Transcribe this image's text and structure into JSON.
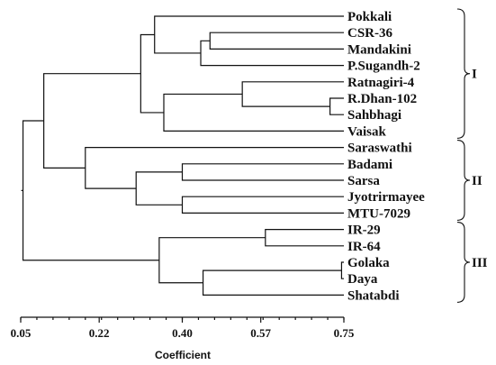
{
  "chart_data": {
    "type": "dendrogram",
    "xlabel": "Coefficient",
    "x_ticks": [
      0.05,
      0.22,
      0.4,
      0.57,
      0.75
    ],
    "x_tick_labels": [
      "0.05",
      "0.22",
      "0.40",
      "0.57",
      "0.75"
    ],
    "xlim": [
      0.05,
      0.75
    ],
    "leaves": [
      "Pokkali",
      "CSR-36",
      "Mandakini",
      "P.Sugandh-2",
      "Ratnagiri-4",
      "R.Dhan-102",
      "Sahbhagi",
      "Vaisak",
      "Saraswathi",
      "Badami",
      "Sarsa",
      "Jyotrirmayee",
      "MTU-7029",
      "IR-29",
      "IR-64",
      "Golaka",
      "Daya",
      "Shatabdi"
    ],
    "merges": [
      {
        "id": "m1",
        "left": "Golaka",
        "right": "Daya",
        "height": 0.745
      },
      {
        "id": "m2",
        "left": "R.Dhan-102",
        "right": "Sahbhagi",
        "height": 0.72
      },
      {
        "id": "m3",
        "left": "CSR-36",
        "right": "Mandakini",
        "height": 0.46
      },
      {
        "id": "m4",
        "left": "IR-29",
        "right": "IR-64",
        "height": 0.58
      },
      {
        "id": "m5",
        "left": "Ratnagiri-4",
        "right": "m2",
        "height": 0.53
      },
      {
        "id": "m6",
        "left": "m3",
        "right": "P.Sugandh-2",
        "height": 0.44
      },
      {
        "id": "m7",
        "left": "Badami",
        "right": "Sarsa",
        "height": 0.4
      },
      {
        "id": "m8",
        "left": "Jyotrirmayee",
        "right": "MTU-7029",
        "height": 0.4
      },
      {
        "id": "m9",
        "left": "m1",
        "right": "Shatabdi",
        "height": 0.445
      },
      {
        "id": "m10",
        "left": "m5",
        "right": "Vaisak",
        "height": 0.36
      },
      {
        "id": "m11",
        "left": "Pokkali",
        "right": "m6",
        "height": 0.34
      },
      {
        "id": "m12",
        "left": "m11",
        "right": "m10",
        "height": 0.31
      },
      {
        "id": "m13",
        "left": "m4",
        "right": "m9",
        "height": 0.35
      },
      {
        "id": "m14",
        "left": "m7",
        "right": "m8",
        "height": 0.3
      },
      {
        "id": "m15",
        "left": "Saraswathi",
        "right": "m14",
        "height": 0.19
      },
      {
        "id": "m16",
        "left": "m12",
        "right": "m15",
        "height": 0.1
      },
      {
        "id": "m17",
        "left": "m16",
        "right": "m13",
        "height": 0.055
      }
    ],
    "clusters": [
      {
        "label": "I",
        "members": [
          "Pokkali",
          "CSR-36",
          "Mandakini",
          "P.Sugandh-2",
          "Ratnagiri-4",
          "R.Dhan-102",
          "Sahbhagi",
          "Vaisak"
        ]
      },
      {
        "label": "II",
        "members": [
          "Saraswathi",
          "Badami",
          "Sarsa",
          "Jyotrirmayee",
          "MTU-7029"
        ]
      },
      {
        "label": "III",
        "members": [
          "IR-29",
          "IR-64",
          "Golaka",
          "Daya",
          "Shatabdi"
        ]
      }
    ]
  }
}
